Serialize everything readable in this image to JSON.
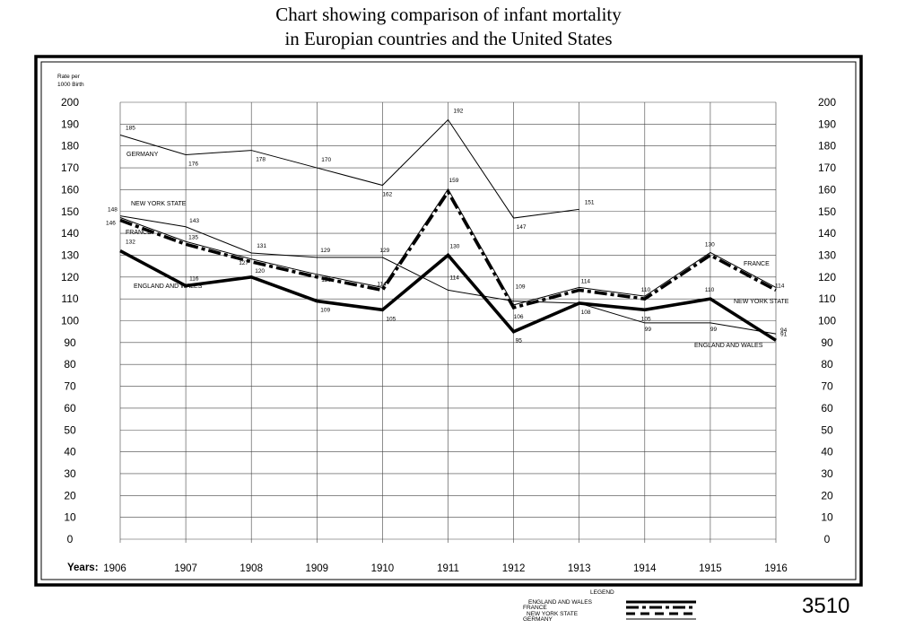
{
  "title_lines": [
    "Chart showing comparison of infant mortality",
    "in Europian countries and the United States"
  ],
  "plate_number": "3510",
  "chart_data": {
    "type": "line",
    "ylabel_lines": [
      "Rate per",
      "1000 Birth"
    ],
    "xlabel": "Years:",
    "x": [
      "1906",
      "1907",
      "1908",
      "1909",
      "1910",
      "1911",
      "1912",
      "1913",
      "1914",
      "1915",
      "1916"
    ],
    "yticks": [
      "0",
      "10",
      "20",
      "30",
      "40",
      "50",
      "60",
      "70",
      "80",
      "90",
      "100",
      "110",
      "120",
      "130",
      "140",
      "150",
      "160",
      "170",
      "180",
      "190",
      "200"
    ],
    "ylim": [
      0,
      200
    ],
    "grid": true,
    "series": [
      {
        "name": "GERMANY",
        "style": "thin",
        "values": [
          185,
          176,
          178,
          170,
          162,
          192,
          147,
          151,
          null,
          null,
          null
        ],
        "point_labels": [
          "185",
          "176",
          "178",
          "170",
          "162",
          "192",
          "147",
          "151",
          "",
          "",
          ""
        ]
      },
      {
        "name": "NEW YORK STATE",
        "style": "thin",
        "values": [
          148,
          143,
          131,
          129,
          129,
          114,
          109,
          108,
          99,
          99,
          94
        ],
        "point_labels": [
          "148",
          "143",
          "131",
          "129",
          "129",
          "114",
          "109",
          "",
          "99",
          "99",
          "94"
        ]
      },
      {
        "name": "FRANCE",
        "style": "dashdot",
        "values": [
          146,
          135,
          127,
          120,
          114,
          159,
          106,
          114,
          110,
          130,
          114
        ],
        "point_labels": [
          "146",
          "135",
          "127",
          "120",
          "114",
          "159",
          "106",
          "114",
          "110",
          "130",
          "114"
        ]
      },
      {
        "name": "ENGLAND AND WALES",
        "style": "thick",
        "values": [
          132,
          116,
          120,
          109,
          105,
          130,
          95,
          108,
          105,
          110,
          91
        ],
        "point_labels": [
          "132",
          "116",
          "120",
          "109",
          "105",
          "130",
          "95",
          "108",
          "105",
          "110",
          "91"
        ]
      }
    ],
    "inline_labels": [
      {
        "text": "GERMANY",
        "series": "GERMANY"
      },
      {
        "text": "NEW YORK STATE",
        "series": "NEW YORK STATE"
      },
      {
        "text": "FRANCE",
        "series": "FRANCE"
      },
      {
        "text": "ENGLAND AND WALES",
        "series": "ENGLAND AND WALES"
      },
      {
        "text": "FRANCE",
        "series": "FRANCE"
      },
      {
        "text": "NEW YORK STATE",
        "series": "NEW YORK STATE"
      },
      {
        "text": "ENGLAND AND WALES",
        "series": "ENGLAND AND WALES"
      }
    ],
    "legend": {
      "title": "LEGEND",
      "placement": "bottom-center",
      "entries": [
        "ENGLAND AND WALES",
        "FRANCE",
        "NEW YORK STATE",
        "GERMANY"
      ]
    }
  }
}
